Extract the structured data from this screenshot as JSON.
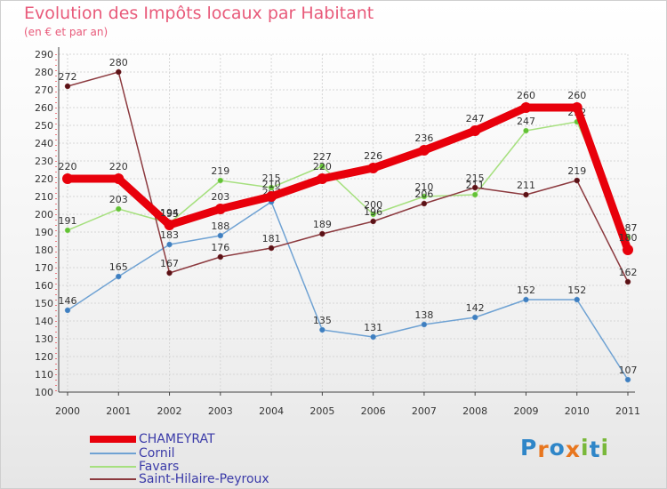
{
  "header": {
    "title": "Evolution des Impôts locaux par Habitant",
    "subtitle": "(en € et par an)"
  },
  "logo": {
    "text": "Proxiti",
    "letters": [
      "P",
      "r",
      "o",
      "x",
      "i",
      "t",
      "i"
    ],
    "letter_colors": [
      "#2f86c8",
      "#e8761e",
      "#2f86c8",
      "#e8761e",
      "#79b83a",
      "#2f86c8",
      "#79b83a"
    ]
  },
  "chart_data": {
    "type": "line",
    "title": "Evolution des Impôts locaux par Habitant",
    "subtitle": "(en € et par an)",
    "xlabel": "",
    "ylabel": "",
    "categories": [
      "2000",
      "2001",
      "2002",
      "2003",
      "2004",
      "2005",
      "2006",
      "2007",
      "2008",
      "2009",
      "2010",
      "2011"
    ],
    "ylim": [
      100,
      290
    ],
    "yticks": [
      100,
      110,
      120,
      130,
      140,
      150,
      160,
      170,
      180,
      190,
      200,
      210,
      220,
      230,
      240,
      250,
      260,
      270,
      280,
      290
    ],
    "grid": true,
    "legend_position": "bottom-left",
    "series": [
      {
        "name": "CHAMEYRAT",
        "color": "#e8000b",
        "marker_color": "#e8000b",
        "emphasis": true,
        "values": [
          220,
          220,
          194,
          203,
          210,
          220,
          226,
          236,
          247,
          260,
          260,
          180
        ]
      },
      {
        "name": "Cornil",
        "color": "#6fa2d3",
        "marker_color": "#3f7fc0",
        "emphasis": false,
        "values": [
          146,
          165,
          183,
          188,
          207,
          135,
          131,
          138,
          142,
          152,
          152,
          107
        ]
      },
      {
        "name": "Favars",
        "color": "#a6e07f",
        "marker_color": "#62c236",
        "emphasis": false,
        "values": [
          191,
          203,
          195,
          219,
          215,
          227,
          200,
          210,
          211,
          247,
          252,
          187
        ]
      },
      {
        "name": "Saint-Hilaire-Peyroux",
        "color": "#8c3a3f",
        "marker_color": "#5a1216",
        "emphasis": false,
        "values": [
          272,
          280,
          167,
          176,
          181,
          189,
          196,
          206,
          215,
          211,
          219,
          162
        ]
      }
    ]
  }
}
